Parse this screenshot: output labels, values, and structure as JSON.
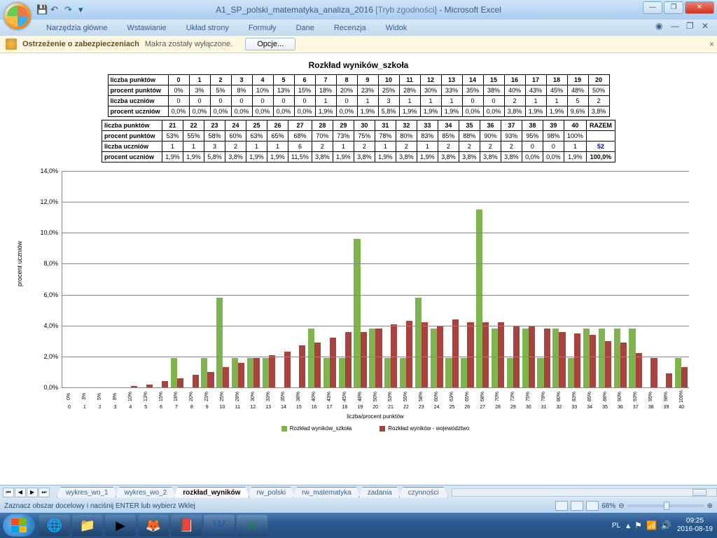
{
  "title": {
    "file": "A1_SP_polski_matematyka_analiza_2016",
    "compat": "[Tryb zgodności]",
    "app": "Microsoft Excel"
  },
  "ribbon": [
    "Narzędzia główne",
    "Wstawianie",
    "Układ strony",
    "Formuły",
    "Dane",
    "Recenzja",
    "Widok"
  ],
  "security": {
    "warn": "Ostrzeżenie o zabezpieczeniach",
    "msg": "Makra zostały wyłączone.",
    "btn": "Opcje..."
  },
  "chart_title": "Rozkład wyników_szkoła",
  "table1": {
    "rows": [
      {
        "h": "liczba punktów",
        "v": [
          "0",
          "1",
          "2",
          "3",
          "4",
          "5",
          "6",
          "7",
          "8",
          "9",
          "10",
          "11",
          "12",
          "13",
          "14",
          "15",
          "16",
          "17",
          "18",
          "19",
          "20"
        ]
      },
      {
        "h": "procent punktów",
        "v": [
          "0%",
          "3%",
          "5%",
          "8%",
          "10%",
          "13%",
          "15%",
          "18%",
          "20%",
          "23%",
          "25%",
          "28%",
          "30%",
          "33%",
          "35%",
          "38%",
          "40%",
          "43%",
          "45%",
          "48%",
          "50%"
        ]
      },
      {
        "h": "liczba uczniów",
        "v": [
          "0",
          "0",
          "0",
          "0",
          "0",
          "0",
          "0",
          "1",
          "0",
          "1",
          "3",
          "1",
          "1",
          "1",
          "0",
          "0",
          "2",
          "1",
          "1",
          "5",
          "2"
        ]
      },
      {
        "h": "procent uczniów",
        "v": [
          "0,0%",
          "0,0%",
          "0,0%",
          "0,0%",
          "0,0%",
          "0,0%",
          "0,0%",
          "1,9%",
          "0,0%",
          "1,9%",
          "5,8%",
          "1,9%",
          "1,9%",
          "1,9%",
          "0,0%",
          "0,0%",
          "3,8%",
          "1,9%",
          "1,9%",
          "9,6%",
          "3,8%"
        ]
      }
    ]
  },
  "table2": {
    "rows": [
      {
        "h": "liczba punktów",
        "v": [
          "21",
          "22",
          "23",
          "24",
          "25",
          "26",
          "27",
          "28",
          "29",
          "30",
          "31",
          "32",
          "33",
          "34",
          "35",
          "36",
          "37",
          "38",
          "39",
          "40",
          "RAZEM"
        ]
      },
      {
        "h": "procent punktów",
        "v": [
          "53%",
          "55%",
          "58%",
          "60%",
          "63%",
          "65%",
          "68%",
          "70%",
          "73%",
          "75%",
          "78%",
          "80%",
          "83%",
          "85%",
          "88%",
          "90%",
          "93%",
          "95%",
          "98%",
          "100%",
          ""
        ]
      },
      {
        "h": "liczba uczniów",
        "v": [
          "1",
          "1",
          "3",
          "2",
          "1",
          "1",
          "6",
          "2",
          "1",
          "2",
          "1",
          "2",
          "1",
          "2",
          "2",
          "2",
          "2",
          "0",
          "0",
          "1",
          "52"
        ]
      },
      {
        "h": "procent uczniów",
        "v": [
          "1,9%",
          "1,9%",
          "5,8%",
          "3,8%",
          "1,9%",
          "1,9%",
          "11,5%",
          "3,8%",
          "1,9%",
          "3,8%",
          "1,9%",
          "3,8%",
          "1,9%",
          "3,8%",
          "3,8%",
          "3,8%",
          "3,8%",
          "0,0%",
          "0,0%",
          "1,9%",
          "100,0%"
        ]
      }
    ]
  },
  "chart": {
    "ymax": 14.0,
    "ystep": 2.0,
    "ylabel": "procent uczniów",
    "xlabel": "liczba/procent punktów",
    "color_school": "#7db54c",
    "color_woj": "#a9413f",
    "legend_school": "Rozkład wyników_szkoła",
    "legend_woj": "Rozkład wyników - województwo",
    "categories": [
      "0",
      "1",
      "2",
      "3",
      "4",
      "5",
      "6",
      "7",
      "8",
      "9",
      "10",
      "11",
      "12",
      "13",
      "14",
      "15",
      "16",
      "17",
      "18",
      "19",
      "20",
      "21",
      "22",
      "23",
      "24",
      "25",
      "26",
      "27",
      "28",
      "29",
      "30",
      "31",
      "32",
      "33",
      "34",
      "35",
      "36",
      "37",
      "38",
      "39",
      "40"
    ],
    "pct_labels": [
      "0%",
      "3%",
      "5%",
      "8%",
      "10%",
      "13%",
      "15%",
      "18%",
      "20%",
      "23%",
      "25%",
      "28%",
      "30%",
      "33%",
      "35%",
      "38%",
      "40%",
      "43%",
      "45%",
      "48%",
      "50%",
      "53%",
      "55%",
      "58%",
      "60%",
      "63%",
      "65%",
      "68%",
      "70%",
      "73%",
      "75%",
      "78%",
      "80%",
      "83%",
      "85%",
      "88%",
      "90%",
      "93%",
      "95%",
      "98%",
      "100%"
    ],
    "school": [
      0,
      0,
      0,
      0,
      0,
      0,
      0,
      1.9,
      0,
      1.9,
      5.8,
      1.9,
      1.9,
      1.9,
      0,
      0,
      3.8,
      1.9,
      1.9,
      9.6,
      3.8,
      1.9,
      1.9,
      5.8,
      3.8,
      1.9,
      1.9,
      11.5,
      3.8,
      1.9,
      3.8,
      1.9,
      3.8,
      1.9,
      3.8,
      3.8,
      3.8,
      3.8,
      0,
      0,
      1.9
    ],
    "woj": [
      0,
      0,
      0,
      0,
      0.1,
      0.2,
      0.4,
      0.6,
      0.8,
      1.0,
      1.3,
      1.6,
      1.9,
      2.1,
      2.3,
      2.7,
      2.9,
      3.2,
      3.6,
      3.6,
      3.8,
      4.1,
      4.3,
      4.2,
      4.0,
      4.4,
      4.2,
      4.2,
      4.2,
      4.0,
      4.0,
      3.8,
      3.6,
      3.5,
      3.4,
      3.0,
      2.9,
      2.2,
      1.9,
      0.9,
      1.3
    ]
  },
  "sheet_tabs": [
    "wykres_wo_1",
    "wykres_wo_2",
    "rozkład_wyników",
    "rw_polski",
    "rw_matematyka",
    "zadania",
    "czynności"
  ],
  "active_tab": 2,
  "status": "Zaznacz obszar docelowy i naciśnij ENTER lub wybierz Wklej",
  "zoom": "68%",
  "lang": "PL",
  "clock": {
    "time": "09:25",
    "date": "2016-08-19"
  }
}
